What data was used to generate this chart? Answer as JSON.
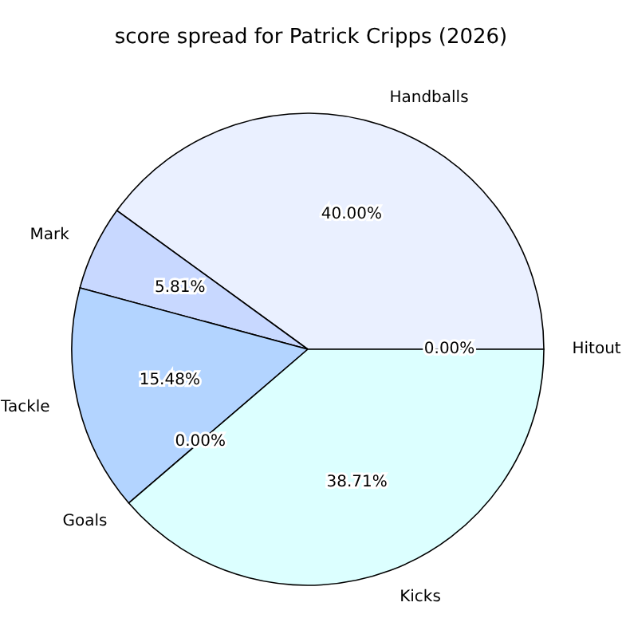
{
  "chart_data": {
    "type": "pie",
    "title": "score spread for Patrick Cripps (2026)",
    "categories": [
      "Handballs",
      "Mark",
      "Tackle",
      "Goals",
      "Kicks",
      "Hitout"
    ],
    "values": [
      40.0,
      5.81,
      15.48,
      0.0,
      38.71,
      0.0
    ],
    "value_labels": [
      "40.00%",
      "5.81%",
      "15.48%",
      "0.00%",
      "38.71%",
      "0.00%"
    ],
    "colors": [
      "#eaf0ff",
      "#c8d8ff",
      "#b3d4ff",
      "#c0e0ff",
      "#dcffff",
      "#e0f0ff"
    ],
    "legend": false
  }
}
